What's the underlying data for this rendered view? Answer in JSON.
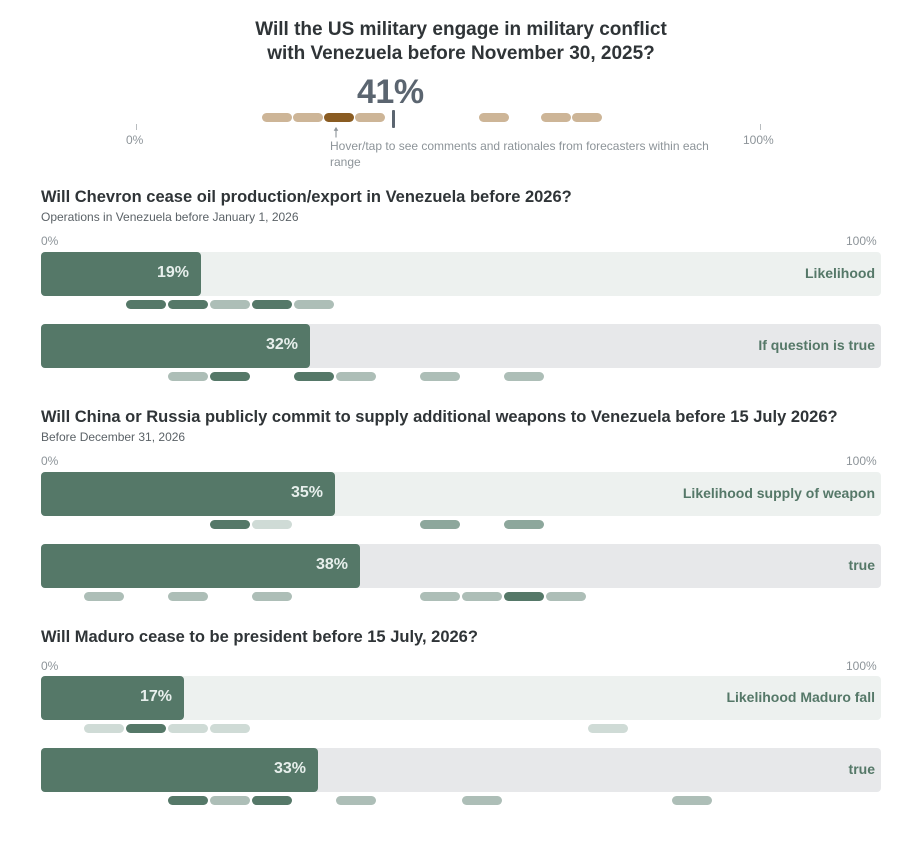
{
  "header": {
    "title_line1": "Will the US military engage in military conflict",
    "title_line2": "with Venezuela before November 30, 2025?",
    "percent": "41%",
    "axis_min": "0%",
    "axis_max": "100%",
    "hover_hint": "Hover/tap to see comments and rationales from forecasters within each range",
    "forecast_bins": [
      {
        "bin": 3,
        "color": "#cdb597"
      },
      {
        "bin": 4,
        "color": "#cdb597"
      },
      {
        "bin": 5,
        "color": "#8a5c22"
      },
      {
        "bin": 6,
        "color": "#cdb597"
      },
      {
        "bin": 11,
        "color": "#cdb597"
      },
      {
        "bin": 13,
        "color": "#cdb597"
      },
      {
        "bin": 14,
        "color": "#cdb597"
      }
    ]
  },
  "colors": {
    "dark": "#557868",
    "mid": "#8da79c",
    "light": "#adbeb7",
    "pale": "#cfdbd6"
  },
  "chart_data": {
    "type": "bar",
    "title": "Will the US military engage in military conflict with Venezuela before November 30, 2025?",
    "headline_value": 41,
    "axis": {
      "min": 0,
      "max": 100,
      "min_label": "0%",
      "max_label": "100%"
    },
    "questions": [
      {
        "title": "Will Chevron cease oil production/export in Venezuela before 2026?",
        "subtitle": "Operations in Venezuela before January 1, 2026",
        "bars": [
          {
            "label": "Likelihood",
            "value": 19,
            "value_label": "19%",
            "track": "#edf1ef",
            "dots": [
              {
                "bin": 2,
                "shade": "dark"
              },
              {
                "bin": 3,
                "shade": "dark"
              },
              {
                "bin": 4,
                "shade": "light"
              },
              {
                "bin": 5,
                "shade": "dark"
              },
              {
                "bin": 6,
                "shade": "light"
              }
            ]
          },
          {
            "label": "If question is true",
            "value": 32,
            "value_label": "32%",
            "track": "#e7e8ea",
            "dots": [
              {
                "bin": 3,
                "shade": "light"
              },
              {
                "bin": 4,
                "shade": "dark"
              },
              {
                "bin": 6,
                "shade": "dark"
              },
              {
                "bin": 7,
                "shade": "light"
              },
              {
                "bin": 9,
                "shade": "light"
              },
              {
                "bin": 11,
                "shade": "light"
              }
            ]
          }
        ]
      },
      {
        "title": "Will China or Russia publicly commit to supply additional weapons to Venezuela before 15 July 2026?",
        "subtitle": "Before December 31, 2026",
        "bars": [
          {
            "label": "Likelihood supply of weapon",
            "value": 35,
            "value_label": "35%",
            "track": "#edf1ef",
            "dots": [
              {
                "bin": 4,
                "shade": "dark"
              },
              {
                "bin": 5,
                "shade": "pale"
              },
              {
                "bin": 9,
                "shade": "mid"
              },
              {
                "bin": 11,
                "shade": "mid"
              }
            ]
          },
          {
            "label": "true",
            "value": 38,
            "value_label": "38%",
            "track": "#e7e8ea",
            "dots": [
              {
                "bin": 1,
                "shade": "light"
              },
              {
                "bin": 3,
                "shade": "light"
              },
              {
                "bin": 5,
                "shade": "light"
              },
              {
                "bin": 9,
                "shade": "light"
              },
              {
                "bin": 10,
                "shade": "light"
              },
              {
                "bin": 11,
                "shade": "dark"
              },
              {
                "bin": 12,
                "shade": "light"
              }
            ]
          }
        ]
      },
      {
        "title": "Will Maduro cease to be president before 15 July, 2026?",
        "subtitle": "",
        "bars": [
          {
            "label": "Likelihood Maduro fall",
            "value": 17,
            "value_label": "17%",
            "track": "#edf1ef",
            "dots": [
              {
                "bin": 1,
                "shade": "pale"
              },
              {
                "bin": 2,
                "shade": "dark"
              },
              {
                "bin": 3,
                "shade": "pale"
              },
              {
                "bin": 4,
                "shade": "pale"
              },
              {
                "bin": 13,
                "shade": "pale"
              }
            ]
          },
          {
            "label": "true",
            "value": 33,
            "value_label": "33%",
            "track": "#e7e8ea",
            "dots": [
              {
                "bin": 3,
                "shade": "dark"
              },
              {
                "bin": 4,
                "shade": "light"
              },
              {
                "bin": 5,
                "shade": "dark"
              },
              {
                "bin": 7,
                "shade": "light"
              },
              {
                "bin": 10,
                "shade": "light"
              },
              {
                "bin": 15,
                "shade": "light"
              }
            ]
          }
        ]
      }
    ]
  }
}
